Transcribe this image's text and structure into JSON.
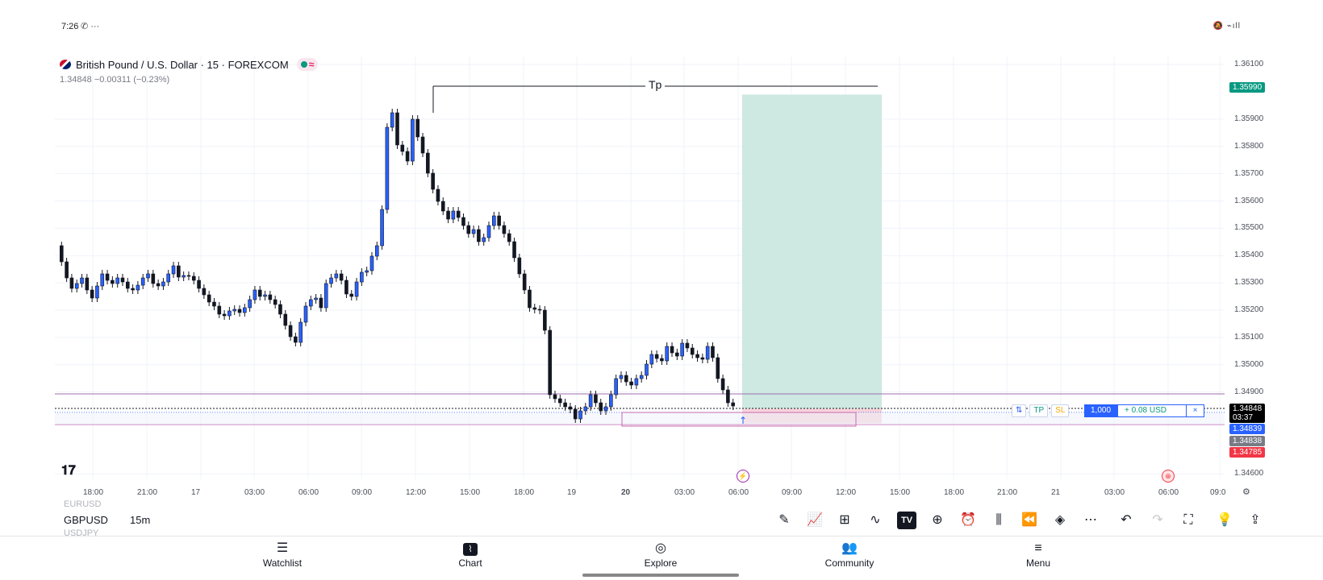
{
  "status": {
    "time": "7:26",
    "left_icons": "✆ ···",
    "right_icons": "🔕 ⌁ıll"
  },
  "legend": {
    "symbol_title": "British Pound / U.S. Dollar · 15 · FOREXCOM",
    "price_line": "1.34848  −0.00311 (−0.23%)"
  },
  "drawing": {
    "tp_label": "Tp"
  },
  "price_axis": {
    "ticks": [
      "1.36100",
      "1.35900",
      "1.35800",
      "1.35700",
      "1.35600",
      "1.35500",
      "1.35400",
      "1.35300",
      "1.35200",
      "1.35100",
      "1.35000",
      "1.34900",
      "1.34600"
    ],
    "tp_tag": "1.35990",
    "last_price": "1.34848",
    "countdown": "03:37",
    "entry_tag": "1.34839",
    "grey_tag": "1.34838",
    "sl_tag": "1.34785"
  },
  "time_axis": {
    "ticks": [
      "18:00",
      "21:00",
      "17",
      "03:00",
      "06:00",
      "09:00",
      "12:00",
      "15:00",
      "18:00",
      "19",
      "20",
      "03:00",
      "06:00",
      "09:00",
      "12:00",
      "15:00",
      "18:00",
      "21:00",
      "21",
      "03:00",
      "06:00",
      "09:0"
    ]
  },
  "trade": {
    "swap_label": "⇅",
    "tp_label": "TP",
    "sl_label": "SL",
    "quantity": "1,000",
    "pnl": "+ 0.08 USD",
    "close": "×"
  },
  "chart_data": {
    "type": "candlestick",
    "symbol": "GBPUSD",
    "interval": "15",
    "ylim": [
      1.3458,
      1.3613
    ],
    "long_position": {
      "entry": 1.34839,
      "take_profit": 1.3599,
      "stop_loss": 1.34785
    },
    "horizontal_lines": [
      1.349,
      1.34785
    ]
  },
  "toolbar": {
    "ghost_above": "EURUSD",
    "symbol": "GBPUSD",
    "ghost_below": "USDJPY",
    "interval": "15m",
    "icons": [
      "pencil-icon",
      "indicators-icon",
      "layouts-icon",
      "compare-icon",
      "tradingview-icon",
      "add-icon",
      "alert-icon",
      "candles-icon",
      "replay-icon",
      "layers-icon",
      "more-icon",
      "undo-icon",
      "redo-icon",
      "fullscreen-icon",
      "idea-icon",
      "share-icon"
    ],
    "tv_label": "TV"
  },
  "nav": {
    "items": [
      {
        "label": "Watchlist",
        "icon": "watchlist-icon"
      },
      {
        "label": "Chart",
        "icon": "chart-icon"
      },
      {
        "label": "Explore",
        "icon": "explore-icon"
      },
      {
        "label": "Community",
        "icon": "community-icon"
      },
      {
        "label": "Menu",
        "icon": "menu-icon"
      }
    ]
  }
}
